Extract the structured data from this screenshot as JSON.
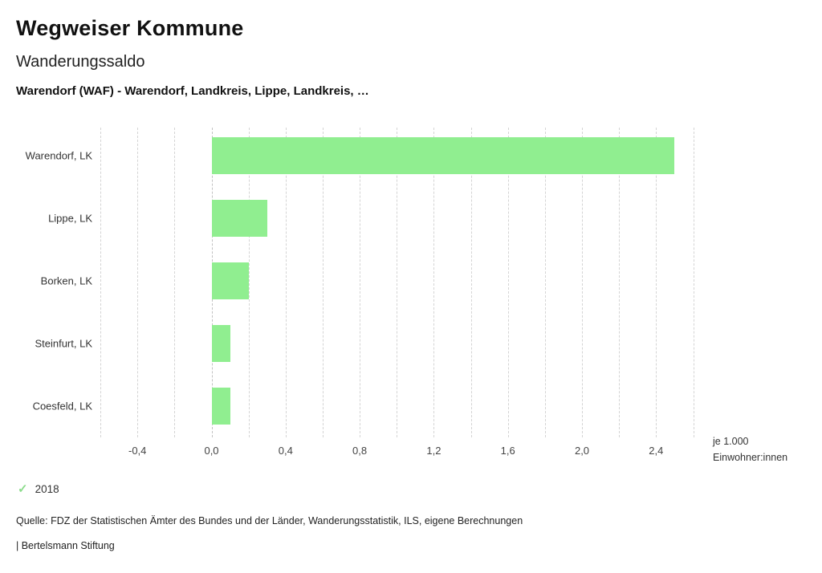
{
  "header": {
    "title": "Wegweiser Kommune",
    "subtitle": "Wanderungssaldo",
    "selection": "Warendorf (WAF) - Warendorf, Landkreis, Lippe, Landkreis, …"
  },
  "legend": {
    "year": "2018",
    "check_icon": "check-icon",
    "check_color": "#8bdc8b"
  },
  "axis_note": {
    "line1": "je 1.000",
    "line2": "Einwohner:innen"
  },
  "footer": {
    "source": "Quelle: FDZ der Statistischen Ämter des Bundes und der Länder, Wanderungsstatistik, ILS, eigene Berechnungen",
    "branding": "| Bertelsmann Stiftung"
  },
  "chart_data": {
    "type": "bar",
    "orientation": "horizontal",
    "title": "Wanderungssaldo",
    "subtitle": "Warendorf (WAF) - Warendorf, Landkreis, Lippe, Landkreis, …",
    "series_name": "2018",
    "categories": [
      "Warendorf, LK",
      "Lippe, LK",
      "Borken, LK",
      "Steinfurt, LK",
      "Coesfeld, LK"
    ],
    "values": [
      2.5,
      0.3,
      0.2,
      0.1,
      0.1
    ],
    "unit": "je 1.000 Einwohner:innen",
    "xlim": [
      -0.6,
      2.65
    ],
    "xticks": [
      -0.4,
      0.0,
      0.4,
      0.8,
      1.2,
      1.6,
      2.0,
      2.4
    ],
    "xtick_labels": [
      "-0,4",
      "0,0",
      "0,4",
      "0,8",
      "1,2",
      "1,6",
      "2,0",
      "2,4"
    ],
    "gridline_step": 0.2,
    "grid": true,
    "legend_position": "bottom-left",
    "bar_color": "#90ee90",
    "gridline_color": "#d4d4d4"
  }
}
